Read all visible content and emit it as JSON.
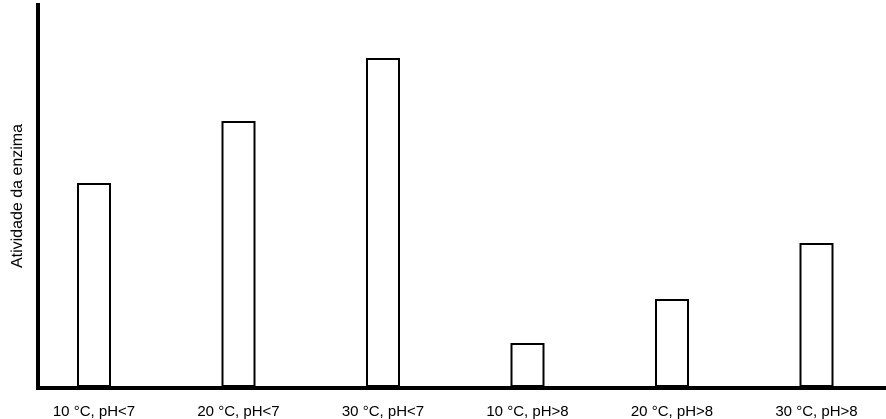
{
  "chart_data": {
    "type": "bar",
    "title": "",
    "xlabel": "",
    "ylabel": "Atividade da enzima",
    "categories": [
      "10 °C, pH<7",
      "20 °C, pH<7",
      "30 °C, pH<7",
      "10 °C, pH>8",
      "20 °C, pH>8",
      "30 °C, pH>8"
    ],
    "values": [
      202,
      264,
      327,
      42,
      86,
      142
    ],
    "ylim": [
      0,
      355
    ],
    "y_ticks_visible": false,
    "grid": false,
    "bar_fill": "#ffffff",
    "bar_stroke": "#000000"
  }
}
